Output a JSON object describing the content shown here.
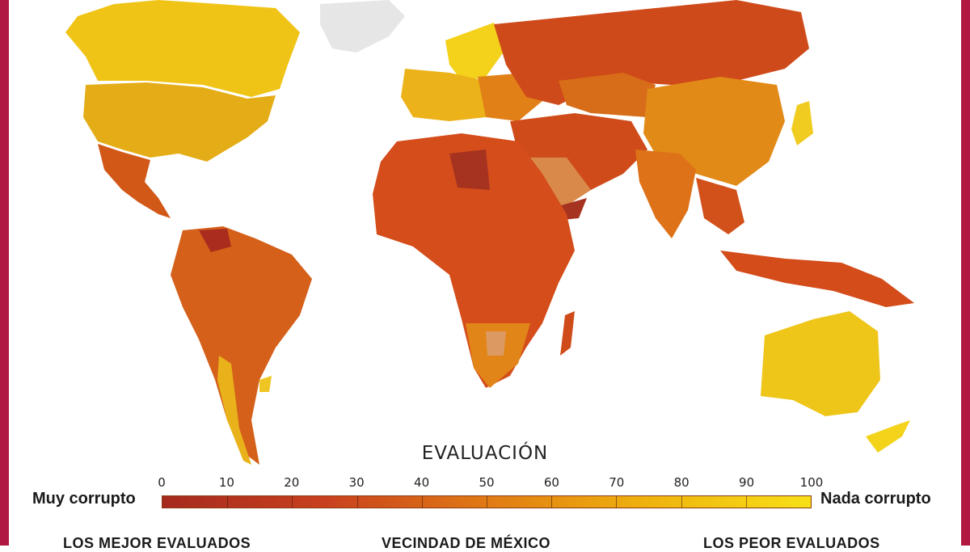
{
  "legend": {
    "title": "EVALUACIÓN",
    "ticks": [
      "0",
      "10",
      "20",
      "30",
      "40",
      "50",
      "60",
      "70",
      "80",
      "90",
      "100"
    ],
    "low_label": "Muy corrupto",
    "high_label": "Nada corrupto",
    "colors": [
      "#a52a1e",
      "#c8401e",
      "#e07a14",
      "#efb30e",
      "#f7e018"
    ]
  },
  "sections": {
    "best": "LOS MEJOR EVALUADOS",
    "neighbors": "VECINDAD DE MÉXICO",
    "worst": "LOS PEOR EVALUADOS"
  },
  "frame_color": "#b01842"
}
